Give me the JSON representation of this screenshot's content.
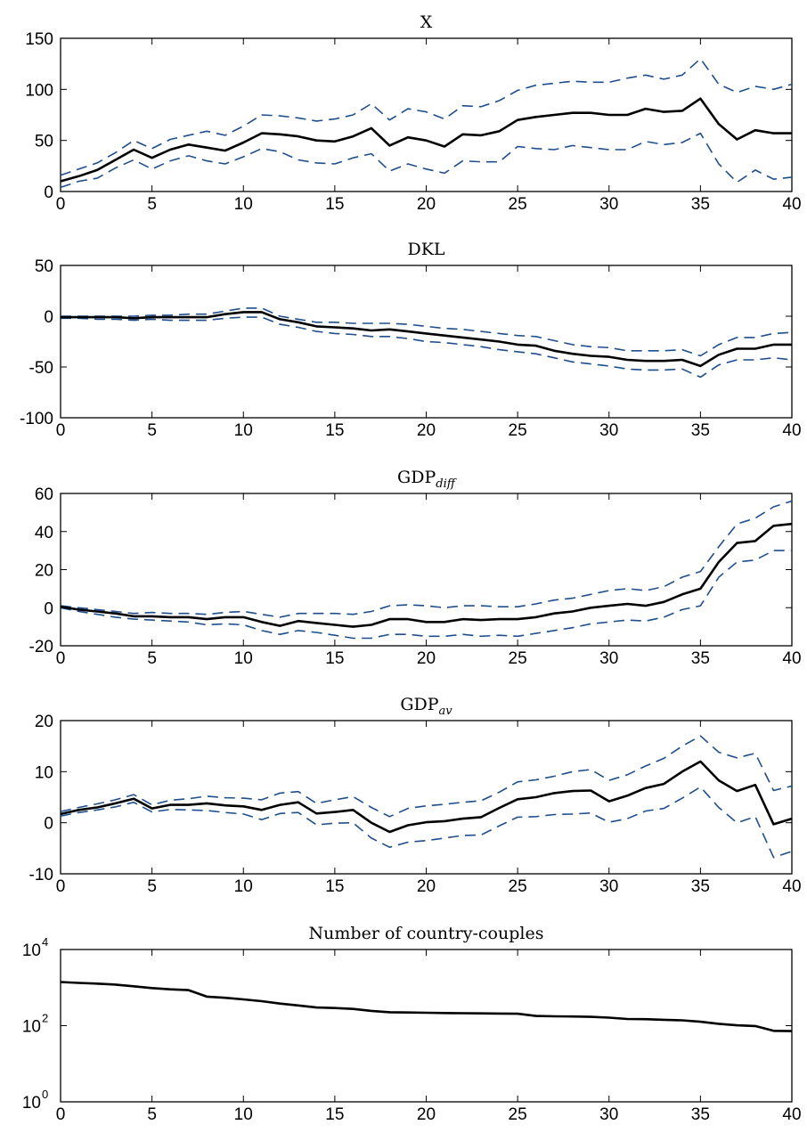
{
  "chart_data": [
    {
      "type": "line",
      "title": "X",
      "xlim": [
        0,
        40
      ],
      "ylim": [
        0,
        150
      ],
      "xticks": [
        0,
        5,
        10,
        15,
        20,
        25,
        30,
        35,
        40
      ],
      "yticks": [
        0,
        50,
        100,
        150
      ],
      "grid": false,
      "series": [
        {
          "style": "solid",
          "color": "#000000",
          "values": [
            10,
            15,
            21,
            31,
            41,
            33,
            41,
            46,
            43,
            40,
            48,
            57,
            56,
            54,
            50,
            49,
            54,
            62,
            45,
            53,
            50,
            44,
            56,
            55,
            59,
            70,
            73,
            75,
            77,
            77,
            75,
            75,
            81,
            78,
            79,
            91,
            66,
            51,
            60,
            57,
            57
          ]
        },
        {
          "style": "dashed",
          "color": "#1f4e8c",
          "values": [
            16,
            22,
            28,
            38,
            50,
            42,
            51,
            55,
            59,
            55,
            64,
            75,
            74,
            72,
            69,
            71,
            75,
            86,
            70,
            81,
            78,
            71,
            84,
            83,
            89,
            99,
            104,
            106,
            108,
            107,
            107,
            111,
            114,
            110,
            114,
            130,
            105,
            97,
            103,
            100,
            105
          ]
        },
        {
          "style": "dashed",
          "color": "#1f4e8c",
          "values": [
            4,
            10,
            13,
            23,
            31,
            22,
            30,
            35,
            30,
            27,
            34,
            42,
            39,
            31,
            28,
            27,
            33,
            37,
            20,
            27,
            22,
            18,
            30,
            29,
            29,
            44,
            42,
            41,
            45,
            43,
            41,
            41,
            49,
            46,
            48,
            57,
            27,
            9,
            21,
            12,
            14
          ]
        }
      ]
    },
    {
      "type": "line",
      "title": "DKL",
      "xlim": [
        0,
        40
      ],
      "ylim": [
        -100,
        50
      ],
      "xticks": [
        0,
        5,
        10,
        15,
        20,
        25,
        30,
        35,
        40
      ],
      "yticks": [
        -100,
        -50,
        0,
        50
      ],
      "grid": false,
      "series": [
        {
          "style": "solid",
          "color": "#000000",
          "values": [
            -1,
            -1,
            -1,
            -1,
            -2,
            -1,
            -1,
            -1,
            -1,
            2,
            4,
            4,
            -3,
            -6,
            -10,
            -11,
            -12,
            -14,
            -13,
            -15,
            -17,
            -19,
            -21,
            -23,
            -25,
            -28,
            -29,
            -34,
            -37,
            -39,
            -40,
            -43,
            -44,
            -44,
            -43,
            -49,
            -38,
            -32,
            -32,
            -28,
            -28
          ]
        },
        {
          "style": "dashed",
          "color": "#1f4e8c",
          "values": [
            0,
            0,
            0,
            0,
            0,
            1,
            1,
            2,
            2,
            5,
            8,
            8,
            0,
            -3,
            -6,
            -6,
            -7,
            -7,
            -7,
            -8,
            -10,
            -12,
            -13,
            -15,
            -17,
            -19,
            -20,
            -24,
            -28,
            -30,
            -31,
            -34,
            -34,
            -34,
            -33,
            -39,
            -28,
            -21,
            -21,
            -17,
            -16
          ]
        },
        {
          "style": "dashed",
          "color": "#1f4e8c",
          "values": [
            -2,
            -2,
            -3,
            -3,
            -4,
            -3,
            -4,
            -4,
            -4,
            -2,
            -1,
            -1,
            -8,
            -11,
            -15,
            -17,
            -18,
            -20,
            -20,
            -22,
            -25,
            -26,
            -28,
            -30,
            -33,
            -35,
            -37,
            -41,
            -45,
            -47,
            -49,
            -52,
            -53,
            -53,
            -52,
            -60,
            -48,
            -43,
            -43,
            -41,
            -43
          ]
        }
      ]
    },
    {
      "type": "line",
      "title": "GDP",
      "title_subscript": "diff",
      "xlim": [
        0,
        40
      ],
      "ylim": [
        -20,
        60
      ],
      "xticks": [
        0,
        5,
        10,
        15,
        20,
        25,
        30,
        35,
        40
      ],
      "yticks": [
        -20,
        0,
        20,
        40,
        60
      ],
      "grid": false,
      "series": [
        {
          "style": "solid",
          "color": "#000000",
          "values": [
            0.5,
            -1,
            -2,
            -3,
            -4.5,
            -4.5,
            -5,
            -5,
            -6,
            -5,
            -5,
            -7.5,
            -9.5,
            -7,
            -8,
            -9,
            -10,
            -9,
            -6,
            -6,
            -7.5,
            -7.5,
            -6,
            -6.5,
            -6,
            -6,
            -5,
            -3,
            -2,
            0,
            1,
            2,
            1,
            3,
            7,
            10,
            24,
            34,
            35,
            43,
            44
          ]
        },
        {
          "style": "dashed",
          "color": "#1f4e8c",
          "values": [
            1,
            0,
            -1,
            -2,
            -3,
            -2.5,
            -3,
            -3,
            -3.5,
            -2.5,
            -2,
            -3.5,
            -5,
            -3,
            -3,
            -3,
            -3.5,
            -2,
            1,
            1.5,
            1,
            0,
            1,
            1,
            0.5,
            0.5,
            2,
            4,
            5,
            7,
            9,
            10,
            9,
            11,
            16,
            19,
            32,
            44,
            47,
            53,
            56
          ]
        },
        {
          "style": "dashed",
          "color": "#1f4e8c",
          "values": [
            0,
            -2,
            -3.5,
            -5,
            -6,
            -6.5,
            -7,
            -7.5,
            -9,
            -8.5,
            -9,
            -12,
            -14,
            -12,
            -13,
            -14.5,
            -16,
            -16,
            -14,
            -14,
            -15,
            -15,
            -14,
            -15,
            -14.5,
            -15,
            -13.5,
            -12,
            -10.5,
            -8.5,
            -7.5,
            -6.5,
            -7,
            -5,
            -1,
            1,
            16,
            24,
            25,
            30,
            30
          ]
        }
      ]
    },
    {
      "type": "line",
      "title": "GDP",
      "title_subscript": "av",
      "xlim": [
        0,
        40
      ],
      "ylim": [
        -10,
        20
      ],
      "xticks": [
        0,
        5,
        10,
        15,
        20,
        25,
        30,
        35,
        40
      ],
      "yticks": [
        -10,
        0,
        10,
        20
      ],
      "grid": false,
      "series": [
        {
          "style": "solid",
          "color": "#000000",
          "values": [
            1.7,
            2.5,
            3.0,
            3.8,
            4.7,
            2.8,
            3.5,
            3.5,
            3.8,
            3.4,
            3.2,
            2.5,
            3.5,
            4.0,
            1.8,
            2.1,
            2.5,
            0.0,
            -1.8,
            -0.5,
            0.1,
            0.3,
            0.8,
            1.1,
            2.9,
            4.6,
            5.0,
            5.8,
            6.2,
            6.3,
            4.2,
            5.3,
            6.8,
            7.6,
            10.0,
            12.0,
            8.3,
            6.2,
            7.4,
            -0.3,
            0.8
          ]
        },
        {
          "style": "dashed",
          "color": "#1f4e8c",
          "values": [
            2.2,
            3.0,
            3.7,
            4.5,
            5.5,
            3.5,
            4.4,
            4.7,
            5.2,
            4.9,
            4.8,
            4.5,
            5.8,
            6.1,
            3.8,
            4.5,
            5.1,
            3.0,
            1.2,
            2.8,
            3.3,
            3.6,
            4.0,
            4.3,
            6.0,
            8.0,
            8.4,
            9.1,
            10.0,
            10.4,
            8.3,
            9.4,
            11.1,
            12.6,
            15.0,
            17.0,
            13.8,
            12.7,
            13.6,
            6.3,
            7.2
          ]
        },
        {
          "style": "dashed",
          "color": "#1f4e8c",
          "values": [
            1.3,
            2.0,
            2.5,
            3.1,
            4.0,
            2.1,
            2.6,
            2.5,
            2.4,
            2.0,
            1.7,
            0.6,
            1.8,
            2.0,
            -0.4,
            -0.1,
            0.0,
            -3.0,
            -4.8,
            -3.8,
            -3.5,
            -3.0,
            -2.5,
            -2.4,
            -0.6,
            1.1,
            1.2,
            1.6,
            1.7,
            1.9,
            0.1,
            0.8,
            2.3,
            2.8,
            4.8,
            7.0,
            3.0,
            0.0,
            1.2,
            -6.8,
            -5.6
          ]
        }
      ]
    },
    {
      "type": "line",
      "title": "Number of country-couples",
      "xlim": [
        0,
        40
      ],
      "ylim": [
        1,
        10000
      ],
      "yscale": "log",
      "xticks": [
        0,
        5,
        10,
        15,
        20,
        25,
        30,
        35,
        40
      ],
      "yticks": [
        1,
        100,
        10000
      ],
      "ytick_labels": [
        {
          "base": "10",
          "exp": "0"
        },
        {
          "base": "10",
          "exp": "2"
        },
        {
          "base": "10",
          "exp": "4"
        }
      ],
      "grid": false,
      "series": [
        {
          "style": "solid",
          "color": "#000000",
          "values": [
            1400,
            1330,
            1270,
            1200,
            1080,
            970,
            900,
            860,
            580,
            540,
            490,
            440,
            380,
            340,
            300,
            290,
            275,
            245,
            225,
            222,
            218,
            215,
            212,
            210,
            208,
            206,
            180,
            176,
            174,
            170,
            162,
            150,
            148,
            143,
            138,
            127,
            112,
            102,
            98,
            73,
            72
          ]
        }
      ]
    }
  ]
}
